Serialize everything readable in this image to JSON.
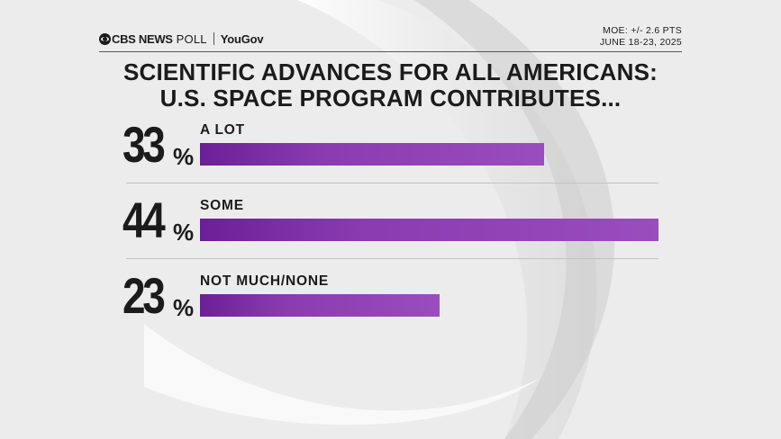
{
  "header": {
    "brand_cbs": "CBS NEWS",
    "brand_poll": "POLL",
    "brand_yougov": "YouGov",
    "moe": "MOE: +/- 2.6 PTS",
    "dates": "JUNE 18-23, 2025"
  },
  "chart_data": {
    "type": "bar",
    "orientation": "horizontal",
    "title": "SCIENTIFIC ADVANCES FOR ALL AMERICANS:",
    "subtitle": "U.S. SPACE PROGRAM CONTRIBUTES...",
    "categories": [
      "A LOT",
      "SOME",
      "NOT MUCH/NONE"
    ],
    "values": [
      33,
      44,
      23
    ],
    "value_labels": [
      "33",
      "44",
      "23"
    ],
    "unit": "%",
    "xlim": [
      0,
      44
    ],
    "grid": false,
    "bar_color": "#8a3bb0"
  }
}
